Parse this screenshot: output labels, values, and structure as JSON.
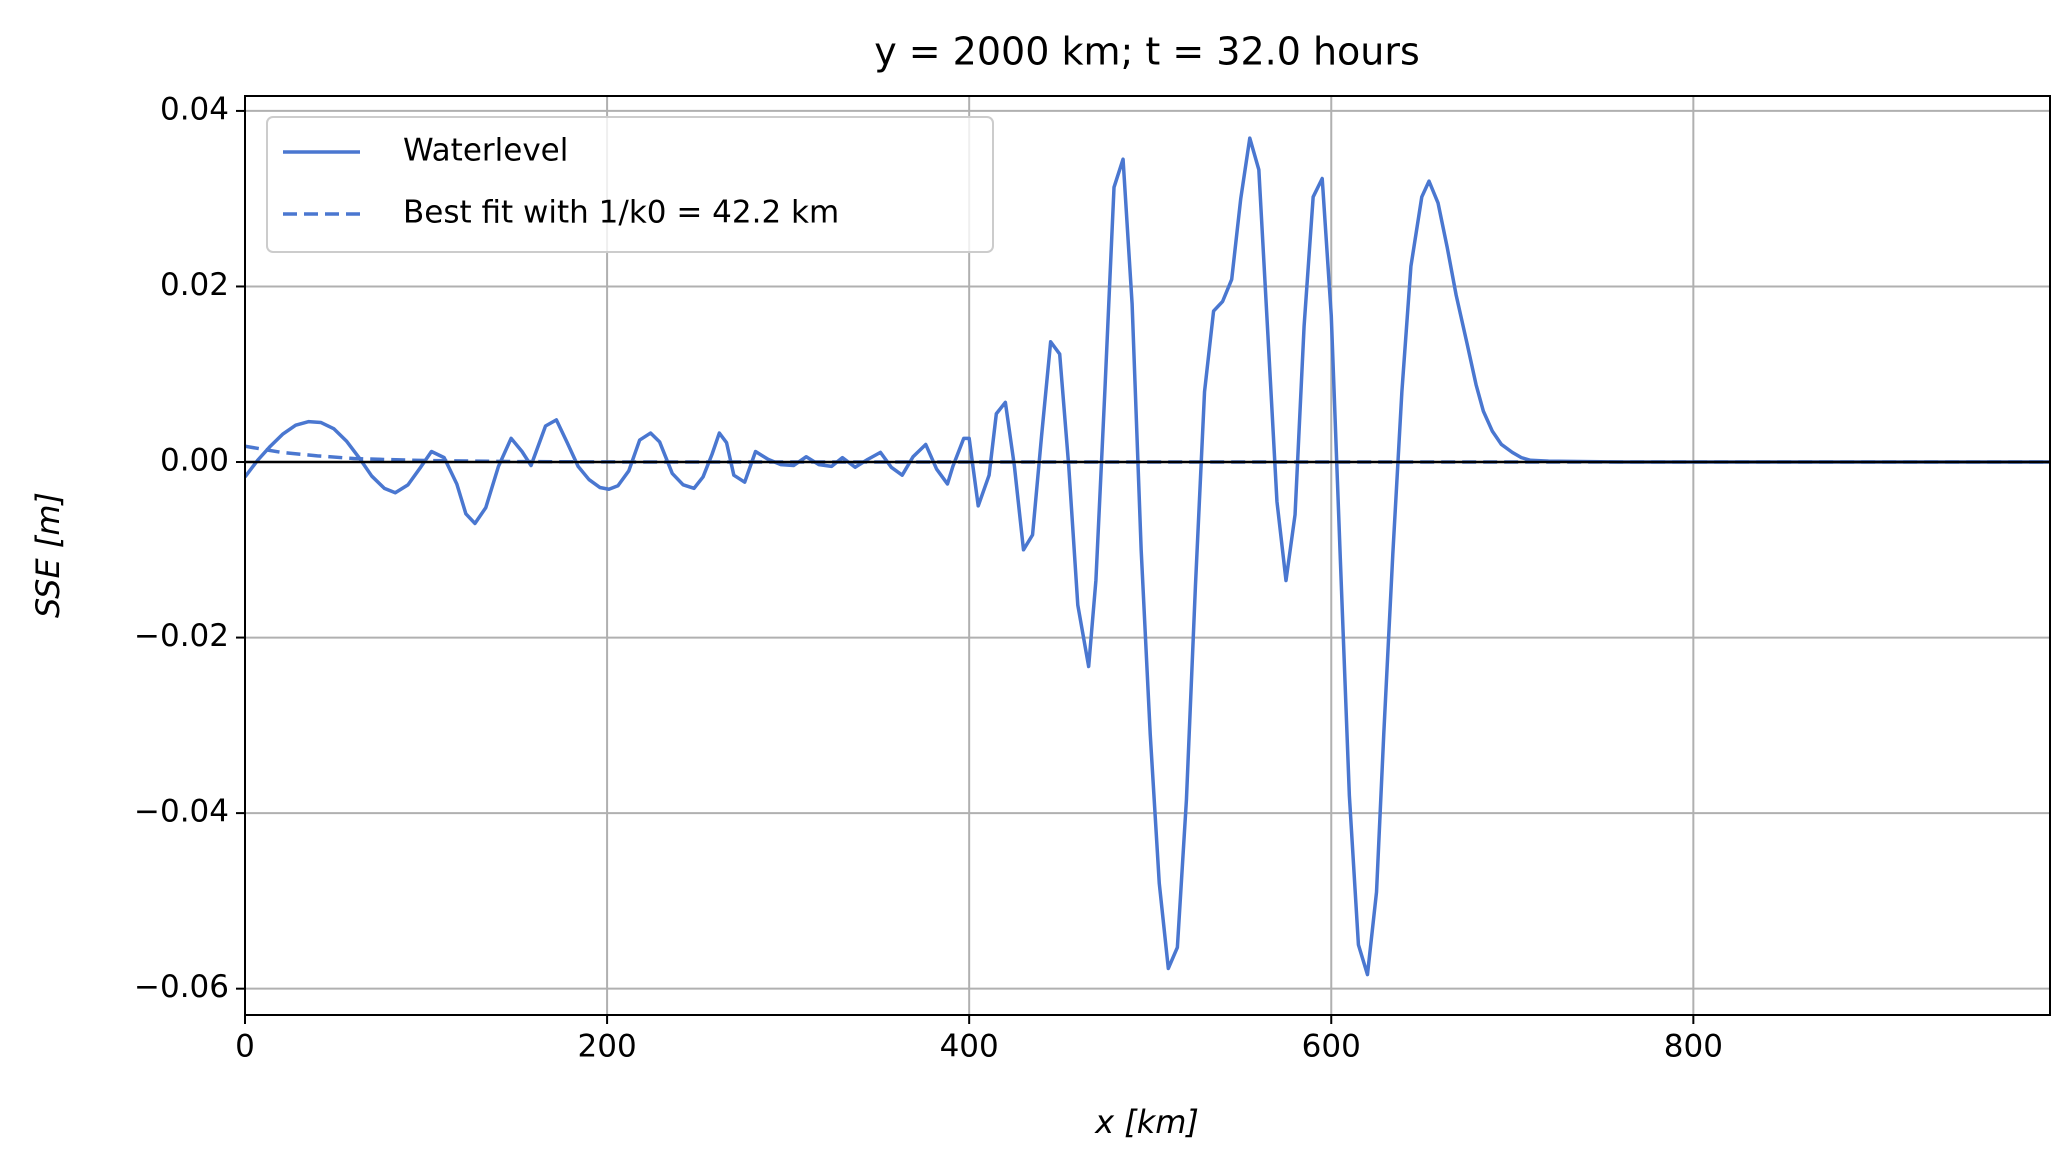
{
  "chart_data": {
    "type": "line",
    "title": "y = 2000 km; t = 32.0 hours",
    "x_label": "x [km]",
    "y_label": "SSE [m]",
    "xlim": [
      0,
      997
    ],
    "ylim": [
      -0.063,
      0.0417
    ],
    "xticks": [
      0,
      200,
      400,
      600,
      800
    ],
    "yticks": [
      {
        "value": -0.06,
        "label": "−0.06"
      },
      {
        "value": -0.04,
        "label": "−0.04"
      },
      {
        "value": -0.02,
        "label": "−0.02"
      },
      {
        "value": 0,
        "label": "0.00"
      },
      {
        "value": 0.02,
        "label": "0.02"
      },
      {
        "value": 0.04,
        "label": "0.04"
      }
    ],
    "grid": true,
    "legend": "upper left",
    "axhline": 0,
    "series": [
      {
        "name": "Waterlevel",
        "color": "#4a77d0",
        "dash": "solid",
        "x": [
          0,
          7,
          14,
          21,
          28,
          35,
          42,
          49,
          56,
          63,
          70,
          77,
          83,
          90,
          97,
          103,
          110,
          117,
          122,
          127,
          133,
          140,
          147,
          153,
          158,
          166,
          172,
          178,
          184,
          190,
          196,
          201,
          206,
          212,
          218,
          224,
          229,
          236,
          242,
          248,
          253,
          258,
          262,
          266,
          270,
          276,
          282,
          289,
          296,
          303,
          310,
          317,
          324,
          330,
          337,
          344,
          351,
          357,
          363,
          369,
          376,
          382,
          388,
          391,
          397,
          400,
          405,
          411,
          415,
          420,
          425,
          430,
          435,
          440,
          445,
          450,
          455,
          460,
          466,
          470,
          475,
          480,
          485,
          490,
          495,
          500,
          505,
          510,
          515,
          520,
          525,
          530,
          535,
          540,
          545,
          550,
          555,
          560,
          565,
          570,
          575,
          580,
          585,
          590,
          595,
          600,
          605,
          610,
          615,
          620,
          625,
          629,
          634,
          639,
          644,
          650,
          654,
          659,
          664,
          669,
          675,
          680,
          684,
          689,
          694,
          700,
          705,
          710,
          720,
          760,
          997
        ],
        "values": [
          -0.0017,
          0.0002,
          0.0018,
          0.0032,
          0.0042,
          0.0046,
          0.0045,
          0.0038,
          0.0024,
          0.0005,
          -0.0016,
          -0.003,
          -0.0035,
          -0.0026,
          -0.0006,
          0.0012,
          0.0005,
          -0.0025,
          -0.0059,
          -0.007,
          -0.0052,
          -0.0005,
          0.0027,
          0.0012,
          -0.0004,
          0.0041,
          0.0048,
          0.0022,
          -0.0005,
          -0.002,
          -0.0029,
          -0.0031,
          -0.0027,
          -0.001,
          0.0025,
          0.0033,
          0.0023,
          -0.0013,
          -0.0026,
          -0.003,
          -0.0017,
          0.0009,
          0.0033,
          0.0022,
          -0.0015,
          -0.0023,
          0.0012,
          0.0003,
          -0.0003,
          -0.0004,
          0.0006,
          -0.0003,
          -0.0005,
          0.0005,
          -0.0006,
          0.0003,
          0.0011,
          -0.0006,
          -0.0015,
          0.0006,
          0.002,
          -0.0008,
          -0.0025,
          -0.0005,
          0.0027,
          0.0027,
          -0.005,
          -0.0015,
          0.0055,
          0.0068,
          -0.0005,
          -0.01,
          -0.0083,
          0.003,
          0.0137,
          0.0123,
          -0.0005,
          -0.0163,
          -0.0233,
          -0.0135,
          0.0083,
          0.0313,
          0.0345,
          0.018,
          -0.01,
          -0.031,
          -0.048,
          -0.0577,
          -0.0553,
          -0.0385,
          -0.014,
          0.008,
          0.0172,
          0.0183,
          0.0208,
          0.03,
          0.0369,
          0.0333,
          0.0145,
          -0.0045,
          -0.0135,
          -0.006,
          0.0155,
          0.0302,
          0.0323,
          0.0167,
          -0.011,
          -0.038,
          -0.055,
          -0.0584,
          -0.049,
          -0.031,
          -0.0105,
          0.008,
          0.0223,
          0.0302,
          0.032,
          0.0295,
          0.0245,
          0.019,
          0.0135,
          0.0088,
          0.0058,
          0.0035,
          0.002,
          0.0011,
          0.0005,
          0.0002,
          0.0001,
          0,
          0
        ]
      },
      {
        "name": "Best fit with 1/k0 = 42.2 km",
        "color": "#4a77d0",
        "dash": "dashed",
        "x": [
          0,
          20,
          40,
          60,
          80,
          100,
          150,
          200,
          300,
          997
        ],
        "values": [
          0.0018,
          0.0011,
          0.0007,
          0.0004,
          0.00027,
          0.00017,
          5e-05,
          1e-05,
          0,
          0
        ]
      }
    ]
  }
}
